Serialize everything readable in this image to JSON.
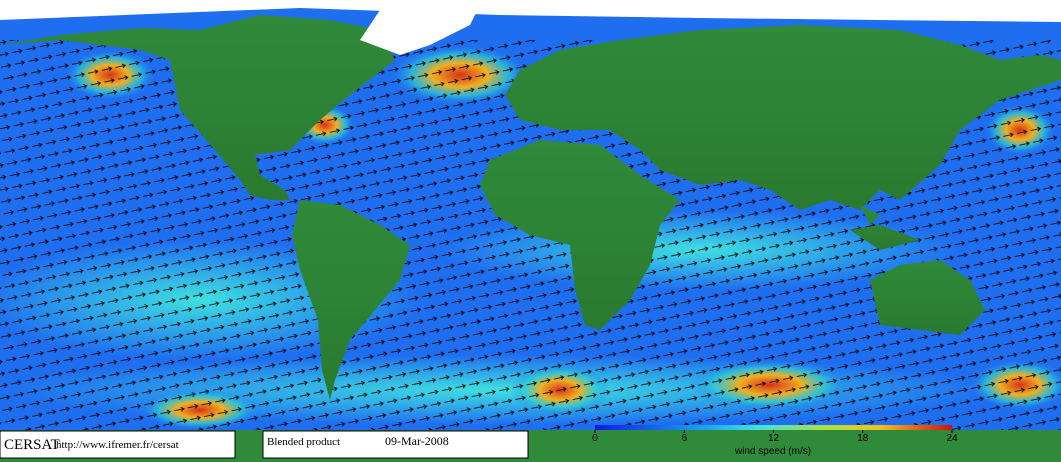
{
  "brand": "CERSAT",
  "url": "http://www.ifremer.fr/cersat",
  "product": "Blended product",
  "date": "09-Mar-2008",
  "colorbar": {
    "label": "wind speed (m/s)",
    "lim": [
      0,
      24
    ],
    "ticks": [
      0,
      6,
      12,
      18,
      24
    ]
  }
}
